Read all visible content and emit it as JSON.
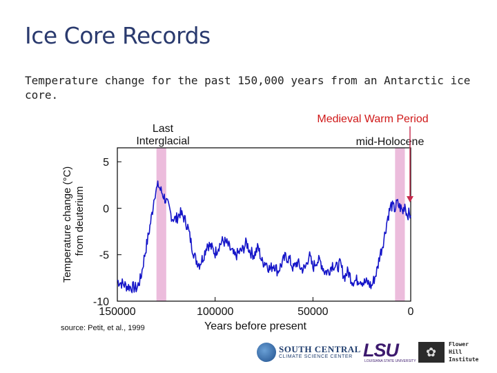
{
  "slide": {
    "title": "Ice Core Records",
    "subtitle": "Temperature change for the past 150,000 years from an Antarctic ice core."
  },
  "chart_data": {
    "type": "line",
    "xlabel": "Years before present",
    "ylabel_line1": "Temperature change (°C)",
    "ylabel_line2": "from deuterium",
    "xlim": [
      150000,
      0
    ],
    "ylim": [
      -10,
      6.5
    ],
    "x_ticks": [
      150000,
      100000,
      50000,
      0
    ],
    "y_ticks": [
      5,
      0,
      -5,
      -10
    ],
    "x_tick_labels": [
      "150000",
      "100000",
      "50000",
      "0"
    ],
    "y_tick_labels": [
      "5",
      "0",
      "-5",
      "-10"
    ],
    "annotations": {
      "last_interglacial_line1": "Last",
      "last_interglacial_line2": "Interglacial",
      "medieval_warm_period": "Medieval Warm Period",
      "mid_holocene": "mid-Holocene",
      "source": "source: Petit, et al., 1999"
    },
    "shaded_bands": [
      {
        "name": "Last Interglacial",
        "x_from": 130000,
        "x_to": 125000
      },
      {
        "name": "mid-Holocene",
        "x_from": 8000,
        "x_to": 3000
      }
    ],
    "series": [
      {
        "color": "#1515c8",
        "x": [
          150000,
          145000,
          140000,
          138000,
          136000,
          134000,
          132000,
          131000,
          129000,
          128000,
          126000,
          124000,
          122000,
          120000,
          118000,
          116000,
          114000,
          112000,
          110000,
          108000,
          106000,
          104000,
          102000,
          100000,
          98000,
          96000,
          94000,
          92000,
          90000,
          88000,
          86000,
          84000,
          82000,
          80000,
          78000,
          76000,
          74000,
          72000,
          70000,
          68000,
          66000,
          64000,
          62000,
          60000,
          58000,
          56000,
          54000,
          52000,
          50000,
          48000,
          46000,
          44000,
          42000,
          40000,
          38000,
          36000,
          34000,
          32000,
          30000,
          28000,
          26000,
          24000,
          22000,
          20000,
          18000,
          17000,
          16000,
          15000,
          14000,
          13000,
          12000,
          11000,
          10000,
          9000,
          8000,
          7000,
          6000,
          5000,
          4000,
          3000,
          2000,
          1000,
          0
        ],
        "values": [
          -7.8,
          -8.4,
          -8.6,
          -7.5,
          -5.0,
          -2.8,
          -0.2,
          1.5,
          2.5,
          2.0,
          1.2,
          0.2,
          -1.0,
          -1.2,
          -0.5,
          -1.0,
          -2.0,
          -4.0,
          -5.5,
          -6.0,
          -5.2,
          -3.8,
          -4.2,
          -4.8,
          -4.0,
          -3.5,
          -3.8,
          -4.5,
          -5.2,
          -4.8,
          -4.5,
          -3.7,
          -4.7,
          -5.0,
          -4.2,
          -5.8,
          -5.8,
          -6.6,
          -6.0,
          -6.8,
          -6.0,
          -5.2,
          -5.5,
          -6.5,
          -5.8,
          -6.5,
          -6.5,
          -5.0,
          -6.4,
          -5.6,
          -5.8,
          -6.8,
          -6.8,
          -6.0,
          -6.4,
          -6.0,
          -7.4,
          -6.8,
          -7.8,
          -7.8,
          -7.6,
          -8.0,
          -8.0,
          -8.4,
          -7.2,
          -6.5,
          -5.2,
          -4.5,
          -3.6,
          -2.5,
          -1.2,
          -0.4,
          0.3,
          0.1,
          -0.1,
          0.6,
          0.2,
          0.0,
          -0.4,
          0.5,
          -0.6,
          -0.6,
          -0.8
        ]
      }
    ]
  },
  "logos": {
    "scc_line1": "SOUTH CENTRAL",
    "scc_line2": "CLIMATE SCIENCE CENTER",
    "lsu_big": "LSU",
    "lsu_small": "LOUISIANA STATE UNIVERSITY",
    "fhi_line1": "Flower",
    "fhi_line2": "Hill",
    "fhi_line3": "Institute"
  },
  "colors": {
    "title": "#2a3a6e",
    "band": "#ecbcdc",
    "line": "#1515c8",
    "mwp_text": "#d01818",
    "arrow": "#c8284b"
  }
}
